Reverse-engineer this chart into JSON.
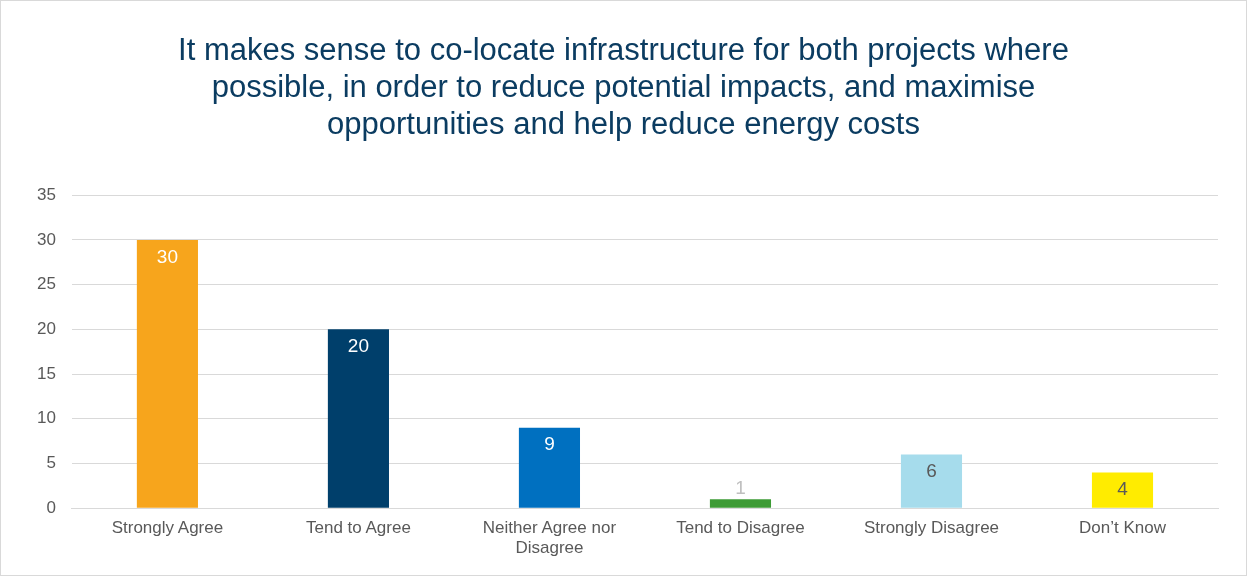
{
  "chart_data": {
    "type": "bar",
    "title": "It makes sense to co-locate infrastructure for both projects where possible, in order to reduce potential impacts, and maximise opportunities and help reduce energy costs",
    "categories": [
      "Strongly Agree",
      "Tend to Agree",
      "Neither Agree nor Disagree",
      "Tend to Disagree",
      "Strongly Disagree",
      "Don’t Know"
    ],
    "values": [
      30,
      20,
      9,
      1,
      6,
      4
    ],
    "colors": [
      "#f7a51c",
      "#003f6b",
      "#0070c0",
      "#3d9b35",
      "#a6dcec",
      "#ffec00"
    ],
    "ylim": [
      0,
      35
    ],
    "yticks": [
      0,
      5,
      10,
      15,
      20,
      25,
      30,
      35
    ],
    "grid": "y",
    "data_labels": true,
    "legend": false
  }
}
